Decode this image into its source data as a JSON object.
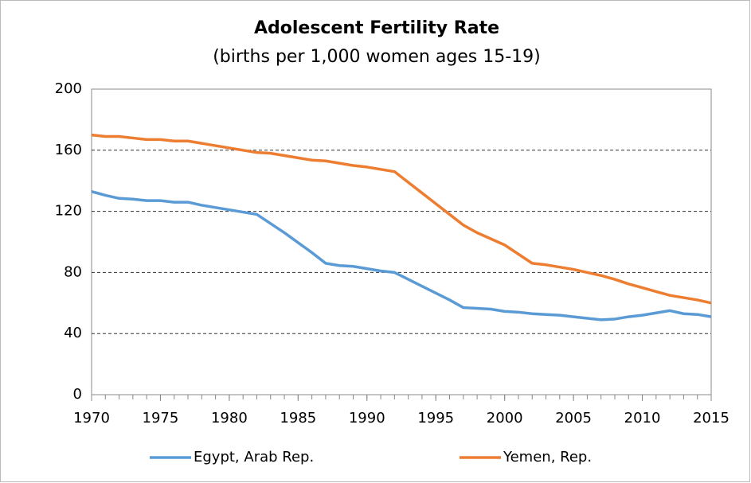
{
  "chart_data": {
    "type": "line",
    "title": "Adolescent Fertility Rate",
    "subtitle": "(births per 1,000 women ages 15-19)",
    "x": [
      1970,
      1971,
      1972,
      1973,
      1974,
      1975,
      1976,
      1977,
      1978,
      1979,
      1980,
      1981,
      1982,
      1983,
      1984,
      1985,
      1986,
      1987,
      1988,
      1989,
      1990,
      1991,
      1992,
      1993,
      1994,
      1995,
      1996,
      1997,
      1998,
      1999,
      2000,
      2001,
      2002,
      2003,
      2004,
      2005,
      2006,
      2007,
      2008,
      2009,
      2010,
      2011,
      2012,
      2013,
      2014,
      2015
    ],
    "series": [
      {
        "name": "Egypt, Arab Rep.",
        "color": "#5b9bd5",
        "values": [
          133,
          130.5,
          128.5,
          128,
          127,
          127,
          126,
          126,
          124,
          122.5,
          121,
          119.5,
          118,
          112,
          106,
          99.5,
          93,
          86,
          84.5,
          84,
          82.5,
          81,
          80,
          75.5,
          71,
          66.5,
          62,
          57,
          56.5,
          56,
          54.5,
          54,
          53,
          52.5,
          52,
          51,
          50,
          49,
          49.5,
          51,
          52,
          53.5,
          55,
          53,
          52.5,
          51
        ]
      },
      {
        "name": "Yemen, Rep.",
        "color": "#ed7d31",
        "values": [
          170,
          169,
          169,
          168,
          167,
          167,
          166,
          166,
          164.5,
          163,
          161.5,
          160,
          158.5,
          158,
          156.5,
          155,
          153.5,
          153,
          151.5,
          150,
          149,
          147.5,
          146,
          139,
          132,
          125,
          118,
          111,
          106,
          102,
          98,
          92,
          86,
          85,
          83.5,
          82,
          80,
          78,
          75.5,
          72.5,
          70,
          67.5,
          65,
          63.5,
          62,
          60
        ]
      }
    ],
    "xlim": [
      1970,
      2015
    ],
    "xticks": [
      1970,
      1975,
      1980,
      1985,
      1990,
      1995,
      2000,
      2005,
      2010,
      2015
    ],
    "ylim": [
      0,
      200
    ],
    "yticks": [
      0,
      40,
      80,
      120,
      160,
      200
    ],
    "grid": true,
    "legend": "bottom"
  }
}
